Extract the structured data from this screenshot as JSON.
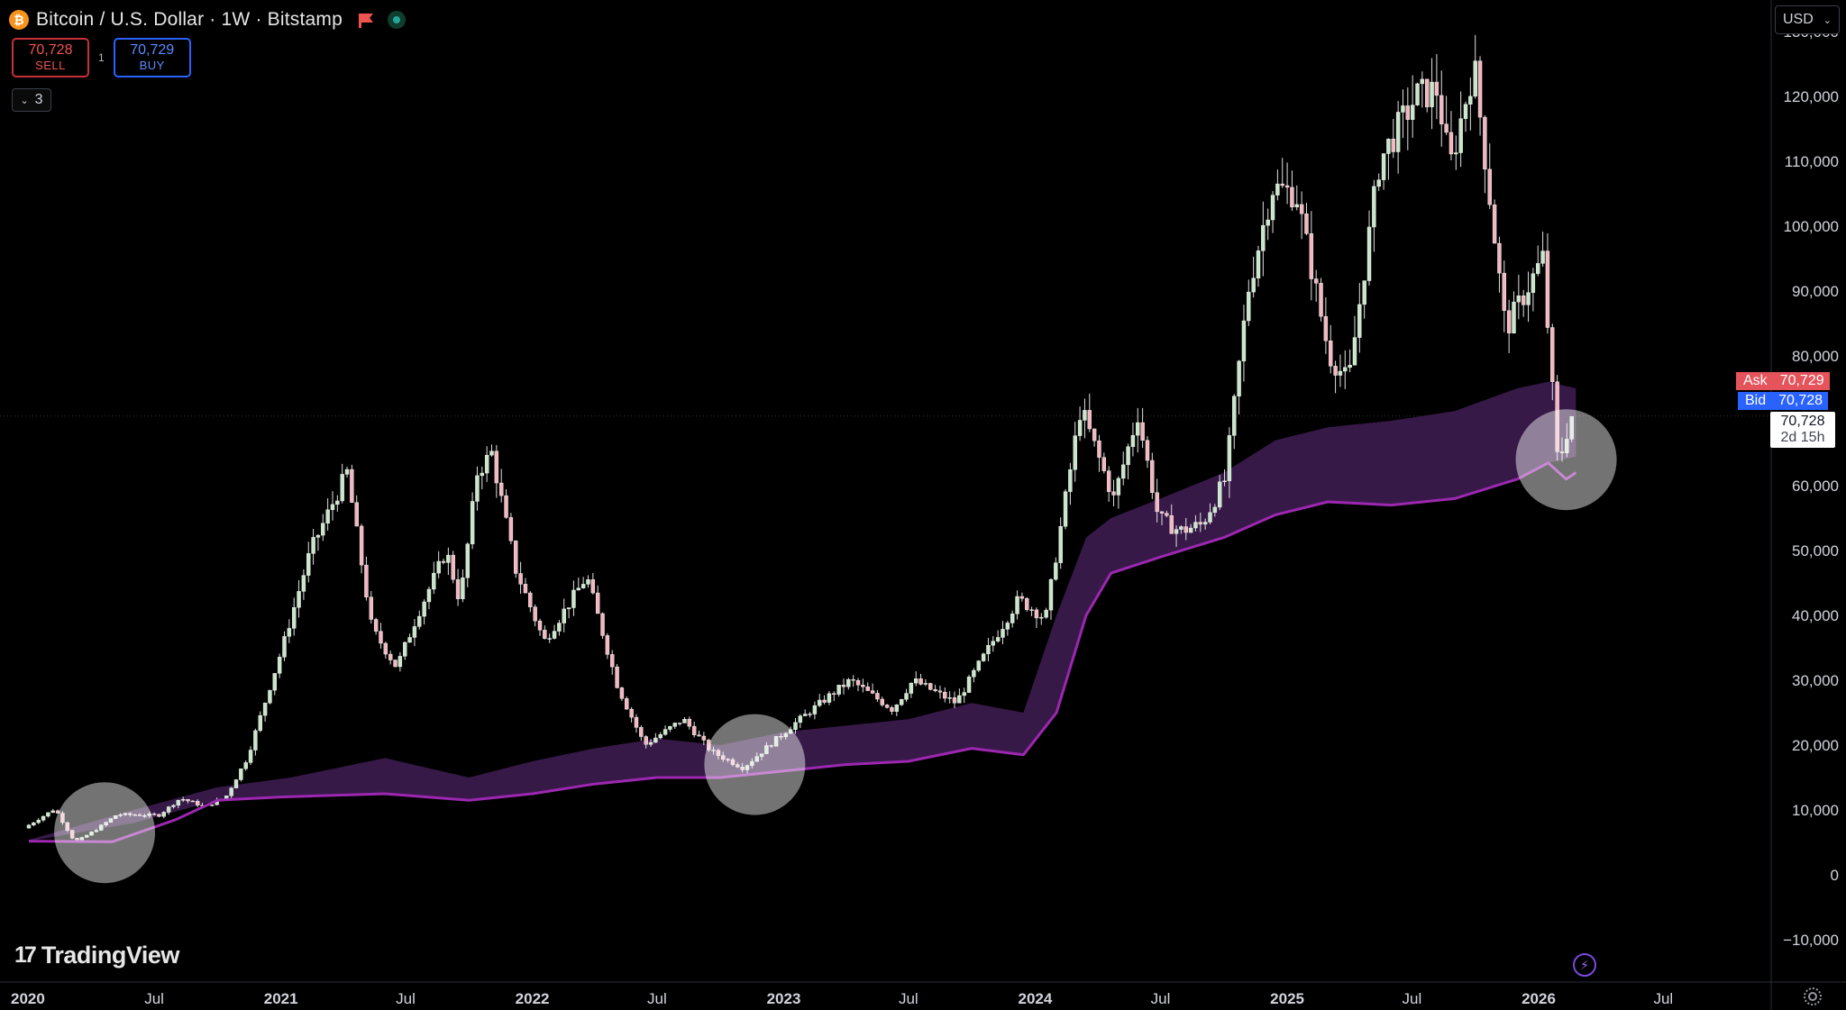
{
  "header": {
    "symbol_title": "Bitcoin / U.S. Dollar · 1W · Bitstamp",
    "coin_glyph": "₿"
  },
  "trade": {
    "sell_price": "70,728",
    "sell_label": "SELL",
    "spread": "1",
    "buy_price": "70,729",
    "buy_label": "BUY"
  },
  "indicators_toggle": {
    "count": "3"
  },
  "currency_button": {
    "label": "USD"
  },
  "price_labels": {
    "ask_label": "Ask",
    "ask_value": "70,729",
    "bid_label": "Bid",
    "bid_value": "70,728",
    "last_price": "70,728",
    "countdown": "2d 15h"
  },
  "brand": {
    "name": "TradingView",
    "mark": "17"
  },
  "colors": {
    "background": "#000000",
    "candle_up": "#c8e6c9",
    "candle_down": "#f4b6bf",
    "band_fill": "#3a1a4c",
    "line": "#9c27b0",
    "highlight_circle": "#ffffff",
    "ask": "#e5535b",
    "bid": "#2962ff"
  },
  "chart_data": {
    "type": "candlestick",
    "title": "Bitcoin / U.S. Dollar · 1W · Bitstamp",
    "ylim": [
      -14000,
      133000
    ],
    "yticks": [
      130000,
      120000,
      110000,
      100000,
      90000,
      80000,
      60000,
      50000,
      40000,
      30000,
      20000,
      10000,
      0,
      -10000
    ],
    "ytick_labels": [
      "130,000",
      "120,000",
      "110,000",
      "100,000",
      "90,000",
      "80,000",
      "60,000",
      "50,000",
      "40,000",
      "30,000",
      "20,000",
      "10,000",
      "0",
      "−10,000"
    ],
    "xlim": [
      "2020-01-01",
      "2026-12-31"
    ],
    "xticks": [
      {
        "date": "2020-01-01",
        "label": "2020",
        "bold": true
      },
      {
        "date": "2020-07-01",
        "label": "Jul",
        "bold": false
      },
      {
        "date": "2021-01-01",
        "label": "2021",
        "bold": true
      },
      {
        "date": "2021-07-01",
        "label": "Jul",
        "bold": false
      },
      {
        "date": "2022-01-01",
        "label": "2022",
        "bold": true
      },
      {
        "date": "2022-07-01",
        "label": "Jul",
        "bold": false
      },
      {
        "date": "2023-01-01",
        "label": "2023",
        "bold": true
      },
      {
        "date": "2023-07-01",
        "label": "Jul",
        "bold": false
      },
      {
        "date": "2024-01-01",
        "label": "2024",
        "bold": true
      },
      {
        "date": "2024-07-01",
        "label": "Jul",
        "bold": false
      },
      {
        "date": "2025-01-01",
        "label": "2025",
        "bold": true
      },
      {
        "date": "2025-07-01",
        "label": "Jul",
        "bold": false
      },
      {
        "date": "2026-01-01",
        "label": "2026",
        "bold": true
      },
      {
        "date": "2026-07-01",
        "label": "Jul",
        "bold": false
      }
    ],
    "price_anchors": [
      [
        "2020-01-01",
        7200
      ],
      [
        "2020-02-15",
        10200
      ],
      [
        "2020-03-15",
        5000
      ],
      [
        "2020-04-15",
        7000
      ],
      [
        "2020-05-15",
        9300
      ],
      [
        "2020-07-15",
        9200
      ],
      [
        "2020-08-15",
        11800
      ],
      [
        "2020-09-20",
        10500
      ],
      [
        "2020-10-20",
        12000
      ],
      [
        "2020-11-20",
        18000
      ],
      [
        "2021-01-10",
        35000
      ],
      [
        "2021-02-20",
        50000
      ],
      [
        "2021-04-14",
        62000
      ],
      [
        "2021-05-20",
        38000
      ],
      [
        "2021-06-25",
        32000
      ],
      [
        "2021-07-25",
        40000
      ],
      [
        "2021-09-05",
        50000
      ],
      [
        "2021-09-25",
        42000
      ],
      [
        "2021-10-20",
        62000
      ],
      [
        "2021-11-10",
        65000
      ],
      [
        "2021-12-15",
        47000
      ],
      [
        "2022-01-25",
        36000
      ],
      [
        "2022-03-28",
        46000
      ],
      [
        "2022-05-12",
        29000
      ],
      [
        "2022-06-20",
        20000
      ],
      [
        "2022-08-15",
        24000
      ],
      [
        "2022-09-25",
        19000
      ],
      [
        "2022-11-10",
        16500
      ],
      [
        "2023-01-20",
        23000
      ],
      [
        "2023-03-20",
        28000
      ],
      [
        "2023-04-15",
        30000
      ],
      [
        "2023-06-15",
        25500
      ],
      [
        "2023-07-15",
        30000
      ],
      [
        "2023-09-15",
        26500
      ],
      [
        "2023-10-30",
        34500
      ],
      [
        "2023-12-15",
        42500
      ],
      [
        "2024-01-23",
        39500
      ],
      [
        "2024-03-14",
        72000
      ],
      [
        "2024-05-01",
        58000
      ],
      [
        "2024-06-05",
        71000
      ],
      [
        "2024-07-05",
        55000
      ],
      [
        "2024-08-05",
        53000
      ],
      [
        "2024-09-06",
        54000
      ],
      [
        "2024-10-10",
        61000
      ],
      [
        "2024-11-12",
        90000
      ],
      [
        "2024-12-17",
        106000
      ],
      [
        "2025-01-21",
        105000
      ],
      [
        "2025-03-10",
        80000
      ],
      [
        "2025-04-07",
        76000
      ],
      [
        "2025-05-22",
        110000
      ],
      [
        "2025-07-14",
        120000
      ],
      [
        "2025-08-14",
        121000
      ],
      [
        "2025-09-01",
        109000
      ],
      [
        "2025-10-06",
        125000
      ],
      [
        "2025-11-21",
        84000
      ],
      [
        "2026-01-14",
        95000
      ],
      [
        "2026-02-05",
        63000
      ],
      [
        "2026-02-24",
        70728
      ]
    ],
    "series": [
      {
        "name": "",
        "style": "band",
        "points": [
          [
            "2020-01-01",
            5200,
            5400
          ],
          [
            "2020-06-01",
            8000,
            10000
          ],
          [
            "2020-10-01",
            11500,
            13500
          ],
          [
            "2021-01-15",
            12000,
            15000
          ],
          [
            "2021-06-01",
            12500,
            18000
          ],
          [
            "2021-10-01",
            11500,
            15000
          ],
          [
            "2022-01-01",
            12500,
            17500
          ],
          [
            "2022-04-01",
            14000,
            19500
          ],
          [
            "2022-07-01",
            15000,
            21000
          ],
          [
            "2022-10-01",
            15000,
            20000
          ],
          [
            "2023-01-01",
            16000,
            22000
          ],
          [
            "2023-04-01",
            17000,
            23000
          ],
          [
            "2023-07-01",
            17500,
            24000
          ],
          [
            "2023-10-01",
            19500,
            26500
          ],
          [
            "2023-12-15",
            18500,
            25000
          ],
          [
            "2024-02-01",
            25000,
            40000
          ],
          [
            "2024-03-15",
            40000,
            52000
          ],
          [
            "2024-04-20",
            46500,
            55000
          ],
          [
            "2024-07-01",
            49000,
            58000
          ],
          [
            "2024-10-01",
            52000,
            62000
          ],
          [
            "2024-12-15",
            55500,
            67000
          ],
          [
            "2025-03-01",
            57500,
            69000
          ],
          [
            "2025-06-01",
            57000,
            70000
          ],
          [
            "2025-09-01",
            58000,
            71500
          ],
          [
            "2025-12-01",
            61000,
            75000
          ],
          [
            "2026-01-15",
            63500,
            76000
          ],
          [
            "2026-02-24",
            64500,
            75000
          ]
        ]
      },
      {
        "name": "",
        "style": "line",
        "points": [
          [
            "2020-01-01",
            5200
          ],
          [
            "2020-05-01",
            5100
          ],
          [
            "2020-08-01",
            8500
          ],
          [
            "2020-10-01",
            11500
          ],
          [
            "2021-01-01",
            12000
          ],
          [
            "2021-06-01",
            12500
          ],
          [
            "2021-10-01",
            11500
          ],
          [
            "2022-01-01",
            12500
          ],
          [
            "2022-04-01",
            14000
          ],
          [
            "2022-07-01",
            15000
          ],
          [
            "2022-10-01",
            15000
          ],
          [
            "2023-01-01",
            16000
          ],
          [
            "2023-04-01",
            17000
          ],
          [
            "2023-07-01",
            17500
          ],
          [
            "2023-10-01",
            19500
          ],
          [
            "2023-12-15",
            18500
          ],
          [
            "2024-02-01",
            25000
          ],
          [
            "2024-03-15",
            40000
          ],
          [
            "2024-04-20",
            46500
          ],
          [
            "2024-07-01",
            49000
          ],
          [
            "2024-10-01",
            52000
          ],
          [
            "2024-12-15",
            55500
          ],
          [
            "2025-03-01",
            57500
          ],
          [
            "2025-06-01",
            57000
          ],
          [
            "2025-09-01",
            58000
          ],
          [
            "2025-12-01",
            61000
          ],
          [
            "2026-01-15",
            63500
          ],
          [
            "2026-02-10",
            61000
          ],
          [
            "2026-02-24",
            62000
          ]
        ]
      }
    ],
    "highlights": [
      {
        "date": "2020-04-20",
        "value": 6500
      },
      {
        "date": "2022-11-20",
        "value": 17000
      },
      {
        "date": "2026-02-10",
        "value": 64000
      }
    ],
    "last_price": 70728,
    "bid": 70728,
    "ask": 70729
  }
}
